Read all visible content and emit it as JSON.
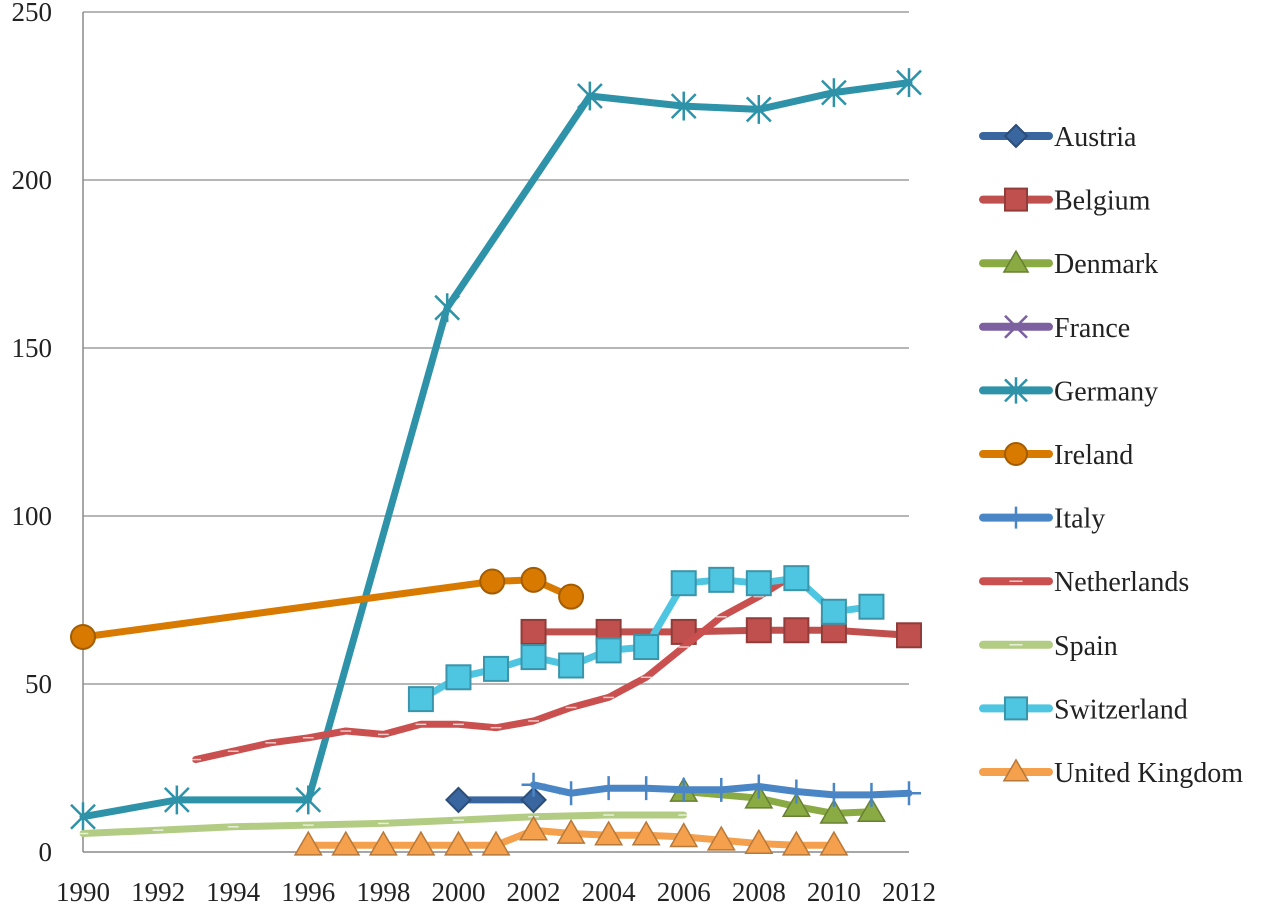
{
  "chart_data": {
    "type": "line",
    "title": "",
    "xlabel": "",
    "ylabel": "",
    "xlim": [
      1990,
      2012
    ],
    "ylim": [
      0,
      250
    ],
    "x_ticks": [
      1990,
      1992,
      1994,
      1996,
      1998,
      2000,
      2002,
      2004,
      2006,
      2008,
      2010,
      2012
    ],
    "y_ticks": [
      0,
      50,
      100,
      150,
      200,
      250
    ],
    "grid": true,
    "legend_position": "right",
    "series": [
      {
        "name": "Austria",
        "color": "#3a66a0",
        "marker": "diamond",
        "points": [
          [
            2000,
            15.5
          ],
          [
            2002,
            15.5
          ]
        ]
      },
      {
        "name": "Belgium",
        "color": "#c0504d",
        "marker": "square",
        "points": [
          [
            2002,
            65.5
          ],
          [
            2004,
            65.5
          ],
          [
            2006,
            65.5
          ],
          [
            2008,
            66
          ],
          [
            2009,
            66
          ],
          [
            2010,
            66
          ],
          [
            2012,
            64.5
          ]
        ]
      },
      {
        "name": "Denmark",
        "color": "#8aaa44",
        "marker": "triangle",
        "points": [
          [
            2006,
            18
          ],
          [
            2008,
            16
          ],
          [
            2009,
            13.5
          ],
          [
            2010,
            11.5
          ],
          [
            2011,
            12
          ]
        ]
      },
      {
        "name": "France",
        "color": "#7d60a0",
        "marker": "x",
        "points": []
      },
      {
        "name": "Germany",
        "color": "#2e92a8",
        "marker": "star",
        "points": [
          [
            1990,
            10.5
          ],
          [
            1992.5,
            15.5
          ],
          [
            1996,
            15.5
          ],
          [
            1999.7,
            162
          ],
          [
            2003.5,
            225
          ],
          [
            2006,
            222
          ],
          [
            2008,
            221
          ],
          [
            2010,
            226
          ],
          [
            2012,
            229
          ]
        ]
      },
      {
        "name": "Ireland",
        "color": "#d97a00",
        "marker": "circle",
        "points": [
          [
            1990,
            64
          ],
          [
            2000.9,
            80.5
          ],
          [
            2002,
            81
          ],
          [
            2003,
            76
          ]
        ]
      },
      {
        "name": "Italy",
        "color": "#4a86c5",
        "marker": "plus",
        "points": [
          [
            2002,
            20
          ],
          [
            2003,
            17.5
          ],
          [
            2004,
            19
          ],
          [
            2005,
            19
          ],
          [
            2006,
            18.5
          ],
          [
            2007,
            18.5
          ],
          [
            2008,
            19.5
          ],
          [
            2009,
            18
          ],
          [
            2010,
            17
          ],
          [
            2011,
            17
          ],
          [
            2012,
            17.5
          ]
        ]
      },
      {
        "name": "Netherlands",
        "color": "#c9504e",
        "marker": "dash",
        "points": [
          [
            1993,
            27.5
          ],
          [
            1994,
            30
          ],
          [
            1995,
            32.5
          ],
          [
            1996,
            34
          ],
          [
            1997,
            36
          ],
          [
            1998,
            35
          ],
          [
            1999,
            38
          ],
          [
            2000,
            38
          ],
          [
            2001,
            37
          ],
          [
            2002,
            39
          ],
          [
            2003,
            43
          ],
          [
            2004,
            46
          ],
          [
            2005,
            52
          ],
          [
            2006,
            61
          ],
          [
            2007,
            70
          ],
          [
            2008,
            76
          ],
          [
            2009,
            83
          ]
        ]
      },
      {
        "name": "Spain",
        "color": "#b3cc84",
        "marker": "dash",
        "points": [
          [
            1990,
            5.5
          ],
          [
            1992,
            6.5
          ],
          [
            1994,
            7.5
          ],
          [
            1996,
            8
          ],
          [
            1998,
            8.5
          ],
          [
            2000,
            9.5
          ],
          [
            2002,
            10.5
          ],
          [
            2004,
            11
          ],
          [
            2006,
            11
          ]
        ]
      },
      {
        "name": "Switzerland",
        "color": "#4ec6e2",
        "marker": "square",
        "points": [
          [
            1999,
            45.5
          ],
          [
            2000,
            52
          ],
          [
            2001,
            54.5
          ],
          [
            2002,
            58
          ],
          [
            2003,
            55.5
          ],
          [
            2004,
            60
          ],
          [
            2005,
            61
          ],
          [
            2006,
            80
          ],
          [
            2007,
            81
          ],
          [
            2008,
            80
          ],
          [
            2009,
            81.5
          ],
          [
            2010,
            71.5
          ],
          [
            2011,
            73
          ]
        ]
      },
      {
        "name": "United Kingdom",
        "color": "#f4a04c",
        "marker": "triangle",
        "points": [
          [
            1996,
            2
          ],
          [
            1997,
            2
          ],
          [
            1998,
            2
          ],
          [
            1999,
            2
          ],
          [
            2000,
            2
          ],
          [
            2001,
            2
          ],
          [
            2002,
            6.5
          ],
          [
            2003,
            5.5
          ],
          [
            2004,
            5
          ],
          [
            2005,
            5
          ],
          [
            2006,
            4.5
          ],
          [
            2007,
            3.5
          ],
          [
            2008,
            2.5
          ],
          [
            2009,
            2
          ],
          [
            2010,
            2
          ]
        ]
      }
    ]
  }
}
